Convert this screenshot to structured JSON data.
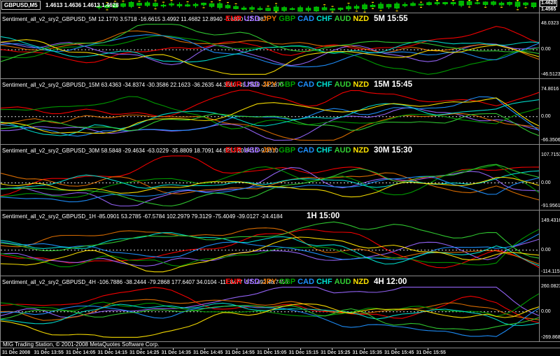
{
  "window": {
    "symbol_tab": "GBPUSD,M5",
    "ohlc": "1.4613 1.4636 1.4613 1.4628",
    "scale_price_boxed": "1.4628",
    "scale_price_secondary": "1.4565"
  },
  "currencies": [
    "EUR",
    "USD",
    "JPY",
    "GBP",
    "CAD",
    "CHF",
    "AUD",
    "NZD"
  ],
  "currency_colors": {
    "EUR": "#ff0000",
    "USD": "#9966ff",
    "JPY": "#e07000",
    "GBP": "#00a000",
    "CAD": "#1e90ff",
    "CHF": "#00e0d0",
    "AUD": "#32cd32",
    "NZD": "#ffe400"
  },
  "accent_colors": {
    "background": "#000000",
    "separator": "#8a8a8a",
    "text": "#ffffff",
    "candle_body": "#00b400",
    "candle_edge": "#00ee00",
    "candle_marker": "#ffd700",
    "zero_line": "#ffffff"
  },
  "status_bar": {
    "text": "MIG Trading Station, © 2001-2008 MetaQuotes Software Corp."
  },
  "time_axis": [
    "31 Dec 2008",
    "31 Dec 13:55",
    "31 Dec 14:05",
    "31 Dec 14:15",
    "31 Dec 14:25",
    "31 Dec 14:35",
    "31 Dec 14:45",
    "31 Dec 14:55",
    "31 Dec 15:05",
    "31 Dec 15:15",
    "31 Dec 15:25",
    "31 Dec 15:35",
    "31 Dec 15:45",
    "31 Dec 15:55"
  ],
  "chart_data": [
    {
      "type": "candlestick",
      "title": "GBPUSD M5 price strip",
      "symbol": "GBPUSD",
      "period": "M5",
      "ohlc": {
        "open": 1.4613,
        "high": 1.4636,
        "low": 1.4613,
        "close": 1.4628
      },
      "visible_scale_prices": [
        "1.4628",
        "1.4565"
      ]
    },
    {
      "type": "line",
      "panel_id": "5M",
      "title": "Sentiment_all_v2_sry2_GBPUSD_5M",
      "legend_visible": true,
      "timeframe_label": "5M 15:55",
      "series": [
        {
          "name": "EUR",
          "value": 12.177
        },
        {
          "name": "USD",
          "value": 3.5718
        },
        {
          "name": "JPY",
          "value": -16.6615
        },
        {
          "name": "GBP",
          "value": 3.4992
        },
        {
          "name": "CAD",
          "value": 11.4682
        },
        {
          "name": "CHF",
          "value": 12.894
        },
        {
          "name": "AUD",
          "value": -6.689
        },
        {
          "name": "NZD",
          "value": -12.1987
        }
      ],
      "ylim": [
        -46.5123,
        48.0323
      ],
      "scale_labels": {
        "top": "48.0323",
        "zero": "0.00",
        "bottom": "-46.5123"
      }
    },
    {
      "type": "line",
      "panel_id": "15M",
      "title": "Sentiment_all_v2_sry2_GBPUSD_15M",
      "legend_visible": true,
      "timeframe_label": "15M 15:45",
      "series": [
        {
          "name": "EUR",
          "value": 63.4363
        },
        {
          "name": "USD",
          "value": -34.8374
        },
        {
          "name": "JPY",
          "value": -30.3586
        },
        {
          "name": "GBP",
          "value": 22.1623
        },
        {
          "name": "CAD",
          "value": -36.2635
        },
        {
          "name": "CHF",
          "value": 44.368
        },
        {
          "name": "AUD",
          "value": -49.7928
        },
        {
          "name": "NZD",
          "value": -24.287
        }
      ],
      "ylim": [
        -66.3506,
        74.8016
      ],
      "scale_labels": {
        "top": "74.8016",
        "zero": "0.00",
        "bottom": "-66.3506"
      }
    },
    {
      "type": "line",
      "panel_id": "30M",
      "title": "Sentiment_all_v2_sry2_GBPUSD_30M",
      "legend_visible": true,
      "timeframe_label": "30M 15:30",
      "series": [
        {
          "name": "EUR",
          "value": 58.5848
        },
        {
          "name": "USD",
          "value": -29.4634
        },
        {
          "name": "JPY",
          "value": -63.0229
        },
        {
          "name": "GBP",
          "value": -35.8809
        },
        {
          "name": "CAD",
          "value": 18.7091
        },
        {
          "name": "CHF",
          "value": 44.6253
        },
        {
          "name": "AUD",
          "value": 20.841
        },
        {
          "name": "NZD",
          "value": -9.331
        }
      ],
      "ylim": [
        -91.9561,
        107.7153
      ],
      "scale_labels": {
        "top": "107.7153",
        "zero": "0.00",
        "bottom": "-91.9561"
      }
    },
    {
      "type": "line",
      "panel_id": "1H",
      "title": "Sentiment_all_v2_sry2_GBPUSD_1H",
      "legend_visible": false,
      "timeframe_label": "1H 15:00",
      "series": [
        {
          "name": "EUR",
          "value": -85.0901
        },
        {
          "name": "USD",
          "value": 53.2785
        },
        {
          "name": "JPY",
          "value": -67.5784
        },
        {
          "name": "GBP",
          "value": 102.2979
        },
        {
          "name": "CAD",
          "value": 79.3129
        },
        {
          "name": "CHF",
          "value": -75.4049
        },
        {
          "name": "AUD",
          "value": -39.0127
        },
        {
          "name": "NZD",
          "value": -24.4184
        }
      ],
      "ylim": [
        -114.1159,
        149.4316
      ],
      "scale_labels": {
        "top": "149.4316",
        "zero": "0.00",
        "bottom": "-114.1159"
      }
    },
    {
      "type": "line",
      "panel_id": "4H",
      "title": "Sentiment_all_v2_sry2_GBPUSD_4H",
      "legend_visible": true,
      "timeframe_label": "4H 12:00",
      "series": [
        {
          "name": "EUR",
          "value": -106.7886
        },
        {
          "name": "USD",
          "value": -38.2444
        },
        {
          "name": "JPY",
          "value": -79.2868
        },
        {
          "name": "GBP",
          "value": 177.6407
        },
        {
          "name": "CAD",
          "value": 34.0104
        },
        {
          "name": "CHF",
          "value": -111.8477
        },
        {
          "name": "AUD",
          "value": -57.1492
        },
        {
          "name": "NZD",
          "value": 48.7456
        }
      ],
      "ylim": [
        -269.8687,
        260.0823
      ],
      "scale_labels": {
        "top": "260.0823",
        "zero": "0.00",
        "bottom": "-269.8687"
      }
    }
  ],
  "render": {
    "points_per_line": 64,
    "candle_count": 55
  }
}
